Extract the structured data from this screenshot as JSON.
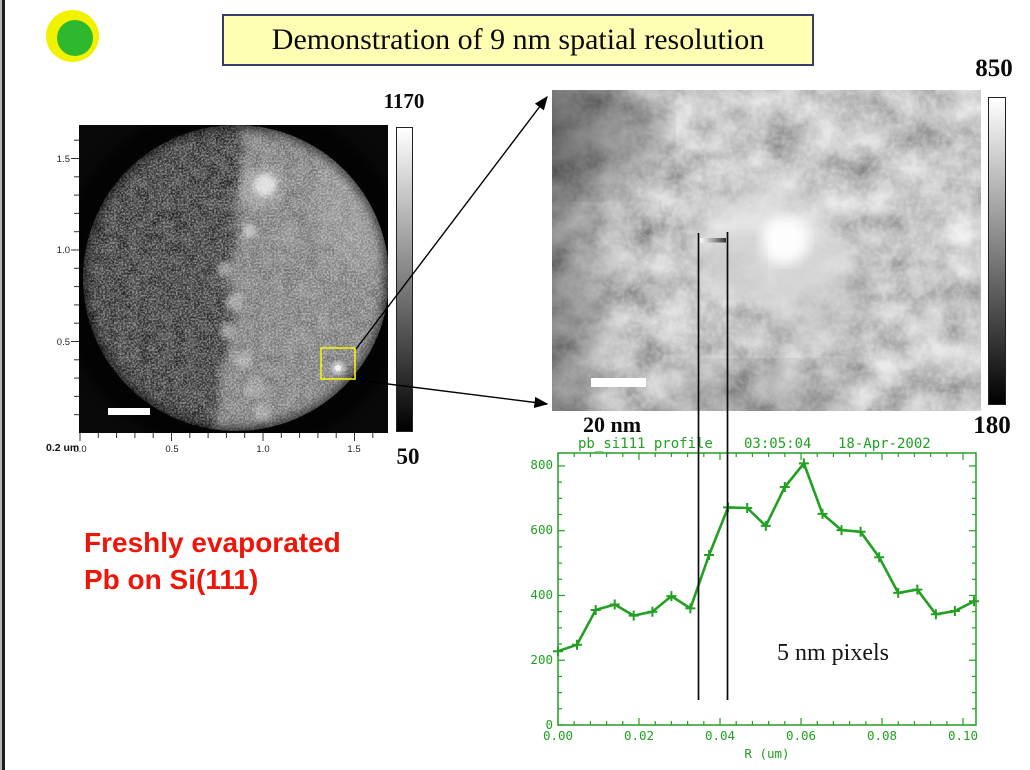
{
  "slide": {
    "title": "Demonstration of 9 nm spatial resolution",
    "title_bg": "#ffffb3",
    "title_border": "#3a3a70",
    "logo_outer_color": "#f2f200",
    "logo_inner_color": "#2eb82e",
    "caption": {
      "line1": "Freshly evaporated",
      "line2": "Pb on Si(111)",
      "color": "#ee1509"
    }
  },
  "overview_figure": {
    "x_tick_labels": [
      "0.0",
      "0.5",
      "1.0",
      "1.5"
    ],
    "y_tick_labels": [
      "1.5",
      "1.0",
      "0.5"
    ],
    "x_ticks": [
      0,
      0.5,
      1.0,
      1.5
    ],
    "y_ticks": [
      0.5,
      1.0,
      1.5
    ],
    "minor_step": 0.1,
    "axis_max": 1.68,
    "scale_label": "0.2 um",
    "colorbar_max": "1170",
    "colorbar_min": "50"
  },
  "zoom_figure": {
    "scale_label": "20 nm",
    "colorbar_max": "850",
    "colorbar_min": "180"
  },
  "chart_data": {
    "type": "line",
    "title": "pb_si111 profile  03:05:04  18-Apr-2002",
    "title_parts": {
      "name": "pb_si111 profile",
      "time": "03:05:04",
      "date": "18-Apr-2002"
    },
    "xlabel": "R (um)",
    "ylabel": "",
    "annotation": "5 nm pixels",
    "pixel_size_note": "5 nm pixels",
    "line_color": "#22a022",
    "grid": false,
    "xlim": [
      0,
      0.1032
    ],
    "ylim": [
      0,
      840
    ],
    "x_ticks": [
      0,
      0.02,
      0.04,
      0.06,
      0.08,
      0.1
    ],
    "x_tick_labels": [
      "0.00",
      "0.02",
      "0.04",
      "0.06",
      "0.08",
      "0.10"
    ],
    "x_minor_step": 0.004,
    "y_ticks": [
      0,
      200,
      400,
      600,
      800
    ],
    "y_tick_labels": [
      "0",
      "200",
      "400",
      "600",
      "800"
    ],
    "y_minor_step": 50,
    "marker_lines_x": [
      0.0347,
      0.0418
    ],
    "series": [
      {
        "name": "pb_si111 profile",
        "marker": "plus",
        "x": [
          0.0,
          0.0047,
          0.0093,
          0.014,
          0.0187,
          0.0233,
          0.028,
          0.0327,
          0.0373,
          0.042,
          0.0467,
          0.0513,
          0.056,
          0.0607,
          0.0653,
          0.07,
          0.0747,
          0.0793,
          0.084,
          0.0887,
          0.0933,
          0.098,
          0.1027
        ],
        "y": [
          228,
          248,
          355,
          372,
          338,
          350,
          398,
          360,
          525,
          672,
          670,
          615,
          735,
          808,
          652,
          602,
          597,
          518,
          408,
          418,
          342,
          352,
          382
        ]
      }
    ]
  }
}
